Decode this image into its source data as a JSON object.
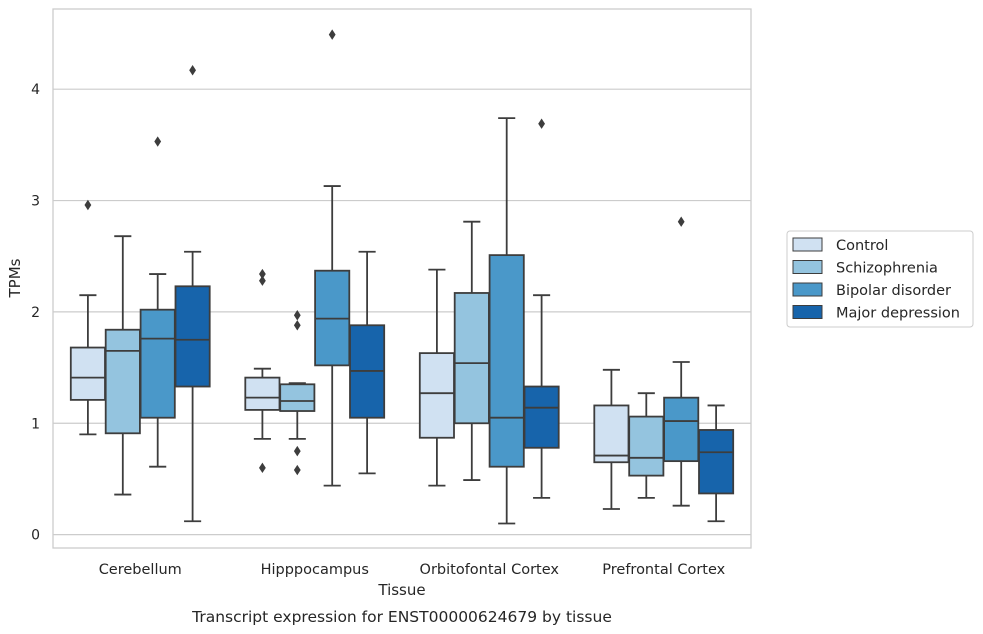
{
  "chart_data": {
    "type": "box",
    "caption": "Transcript expression for ENST00000624679 by tissue",
    "xlabel": "Tissue",
    "ylabel": "TPMs",
    "ylim": [
      -0.12,
      4.72
    ],
    "yticks": [
      "0",
      "1",
      "2",
      "3",
      "4"
    ],
    "grid": "horizontal",
    "legend_position": "right",
    "categories": [
      "Cerebellum",
      "Hipppocampus",
      "Orbitofontal Cortex",
      "Prefrontal Cortex"
    ],
    "series": [
      {
        "name": "Control",
        "color": "#d0e1f2",
        "boxes": [
          {
            "whisker_low": 0.9,
            "q1": 1.21,
            "median": 1.41,
            "q3": 1.68,
            "whisker_high": 2.15,
            "outliers": [
              2.96
            ]
          },
          {
            "whisker_low": 0.86,
            "q1": 1.12,
            "median": 1.23,
            "q3": 1.41,
            "whisker_high": 1.49,
            "outliers": [
              2.34,
              2.28,
              0.6
            ]
          },
          {
            "whisker_low": 0.44,
            "q1": 0.87,
            "median": 1.27,
            "q3": 1.63,
            "whisker_high": 2.38,
            "outliers": []
          },
          {
            "whisker_low": 0.23,
            "q1": 0.65,
            "median": 0.71,
            "q3": 1.16,
            "whisker_high": 1.48,
            "outliers": []
          }
        ]
      },
      {
        "name": "Schizophrenia",
        "color": "#94c4df",
        "boxes": [
          {
            "whisker_low": 0.36,
            "q1": 0.91,
            "median": 1.65,
            "q3": 1.84,
            "whisker_high": 2.68,
            "outliers": []
          },
          {
            "whisker_low": 0.86,
            "q1": 1.11,
            "median": 1.2,
            "q3": 1.35,
            "whisker_high": 1.36,
            "outliers": [
              1.97,
              1.88,
              0.75,
              0.58
            ]
          },
          {
            "whisker_low": 0.49,
            "q1": 1.0,
            "median": 1.54,
            "q3": 2.17,
            "whisker_high": 2.81,
            "outliers": []
          },
          {
            "whisker_low": 0.33,
            "q1": 0.53,
            "median": 0.69,
            "q3": 1.06,
            "whisker_high": 1.27,
            "outliers": []
          }
        ]
      },
      {
        "name": "Bipolar disorder",
        "color": "#4a98c9",
        "boxes": [
          {
            "whisker_low": 0.61,
            "q1": 1.05,
            "median": 1.76,
            "q3": 2.02,
            "whisker_high": 2.34,
            "outliers": [
              3.53
            ]
          },
          {
            "whisker_low": 0.44,
            "q1": 1.52,
            "median": 1.94,
            "q3": 2.37,
            "whisker_high": 3.13,
            "outliers": [
              4.49
            ]
          },
          {
            "whisker_low": 0.1,
            "q1": 0.61,
            "median": 1.05,
            "q3": 2.51,
            "whisker_high": 3.74,
            "outliers": []
          },
          {
            "whisker_low": 0.26,
            "q1": 0.66,
            "median": 1.02,
            "q3": 1.23,
            "whisker_high": 1.55,
            "outliers": [
              2.81
            ]
          }
        ]
      },
      {
        "name": "Major depression",
        "color": "#1764ab",
        "boxes": [
          {
            "whisker_low": 0.12,
            "q1": 1.33,
            "median": 1.75,
            "q3": 2.23,
            "whisker_high": 2.54,
            "outliers": [
              4.17
            ]
          },
          {
            "whisker_low": 0.55,
            "q1": 1.05,
            "median": 1.47,
            "q3": 1.88,
            "whisker_high": 2.54,
            "outliers": []
          },
          {
            "whisker_low": 0.33,
            "q1": 0.78,
            "median": 1.14,
            "q3": 1.33,
            "whisker_high": 2.15,
            "outliers": [
              3.69
            ]
          },
          {
            "whisker_low": 0.12,
            "q1": 0.37,
            "median": 0.74,
            "q3": 0.94,
            "whisker_high": 1.16,
            "outliers": []
          }
        ]
      }
    ]
  }
}
